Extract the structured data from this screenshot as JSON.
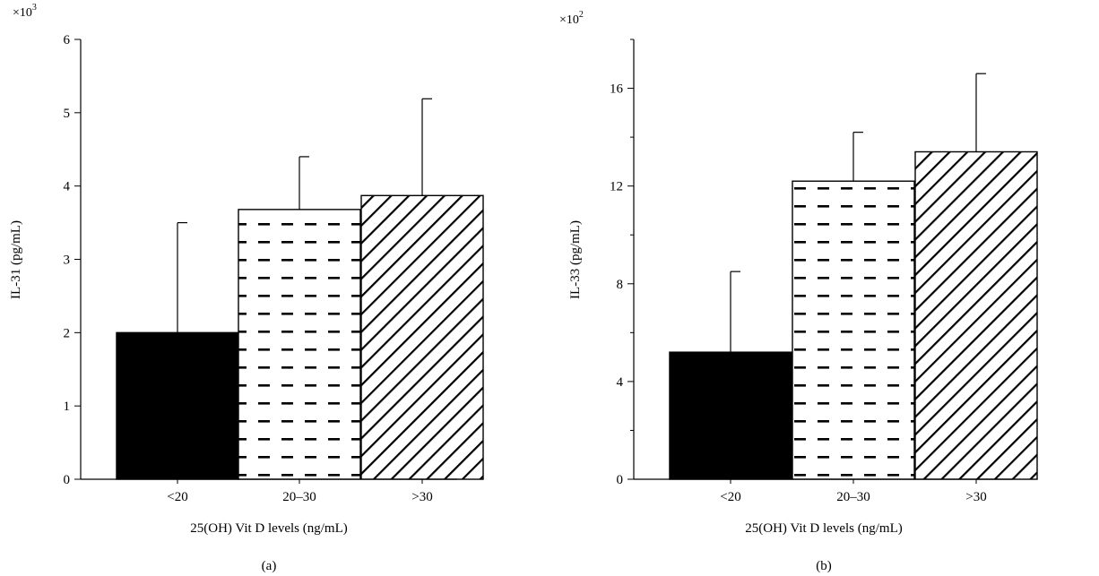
{
  "chart_data": [
    {
      "type": "bar",
      "panel_label": "(a)",
      "multiplier_base": "×10",
      "multiplier_exp": "3",
      "categories": [
        "<20",
        "20–30",
        ">30"
      ],
      "values": [
        2.0,
        3.68,
        3.87
      ],
      "error_upper": [
        3.5,
        4.4,
        5.19
      ],
      "patterns": [
        "solid",
        "dashes",
        "diagonal"
      ],
      "xlabel": "25(OH) Vit D levels (ng/mL)",
      "ylabel": "IL-31 (pg/mL)",
      "ylim": [
        0,
        6
      ],
      "yticks": [
        0,
        1,
        2,
        3,
        4,
        5,
        6
      ],
      "ytick_labels": [
        "0",
        "1",
        "2",
        "3",
        "4",
        "5",
        "6"
      ],
      "grid": false,
      "colors": {
        "bar_fill": "#000000",
        "bar_stroke": "#000000",
        "background": "#ffffff"
      }
    },
    {
      "type": "bar",
      "panel_label": "(b)",
      "multiplier_base": "×10",
      "multiplier_exp": "2",
      "categories": [
        "<20",
        "20–30",
        ">30"
      ],
      "values": [
        5.2,
        12.2,
        13.4
      ],
      "error_upper": [
        8.5,
        14.2,
        16.6
      ],
      "patterns": [
        "solid",
        "dashes",
        "diagonal"
      ],
      "xlabel": "25(OH) Vit D levels (ng/mL)",
      "ylabel": "IL-33 (pg/mL)",
      "ylim": [
        0,
        18
      ],
      "yticks": [
        0,
        4,
        8,
        12,
        16
      ],
      "ytick_labels": [
        "0",
        "4",
        "8",
        "12",
        "16"
      ],
      "minor_yticks": [
        2,
        6,
        10,
        14,
        18
      ],
      "grid": false,
      "colors": {
        "bar_fill": "#000000",
        "bar_stroke": "#000000",
        "background": "#ffffff"
      }
    }
  ]
}
